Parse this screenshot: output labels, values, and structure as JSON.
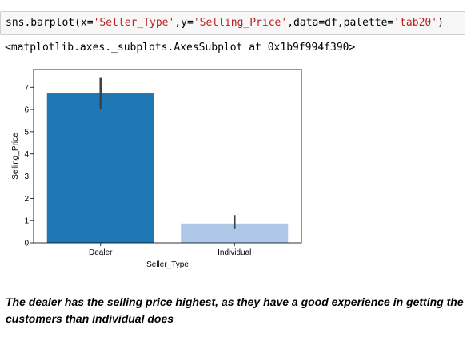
{
  "code_cell": {
    "p1": "sns.barplot(x=",
    "s1": "'Seller_Type'",
    "p2": ",y=",
    "s2": "'Selling_Price'",
    "p3": ",data=df,palette=",
    "s3": "'tab20'",
    "p4": ")"
  },
  "output_text": "<matplotlib.axes._subplots.AxesSubplot at 0x1b9f994f390>",
  "chart_data": {
    "type": "bar",
    "categories": [
      "Dealer",
      "Individual"
    ],
    "values": [
      6.72,
      0.87
    ],
    "error_low": [
      6.0,
      0.62
    ],
    "error_high": [
      7.42,
      1.25
    ],
    "colors": [
      "#1f77b4",
      "#aec7e8"
    ],
    "xlabel": "Seller_Type",
    "ylabel": "Selling_Price",
    "ylim": [
      0,
      7.8
    ],
    "yticks": [
      0,
      1,
      2,
      3,
      4,
      5,
      6,
      7
    ],
    "grid": false
  },
  "markdown": {
    "text": "The dealer has the selling price highest, as they have a good experience in getting the customers than individual does"
  }
}
